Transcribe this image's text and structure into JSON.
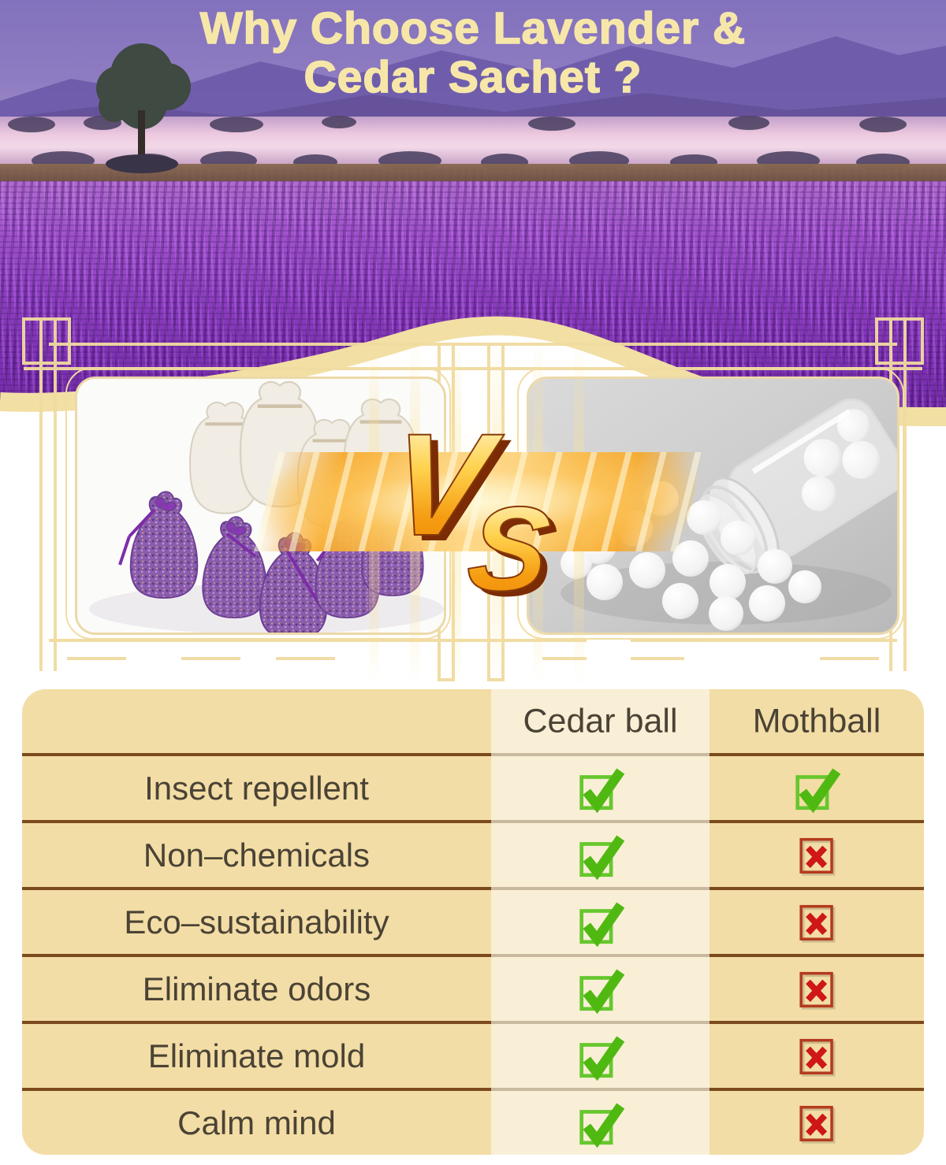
{
  "hero": {
    "title_line1": "Why Choose Lavender &",
    "title_line2": "Cedar Sachet ?",
    "title_color": "#f6e7a9"
  },
  "versus": {
    "v": "V",
    "s": "S",
    "gold": "#f5a51b",
    "shadow_color": "#7b2c05"
  },
  "photos": {
    "left_subject": "lavender-sachet-bags",
    "right_subject": "mothball-jar"
  },
  "frame": {
    "line_color": "#f0dba0",
    "band_color": "#f2dfa4"
  },
  "table": {
    "headers": [
      "Cedar ball",
      "Mothball"
    ],
    "rows": [
      {
        "label": "Insect repellent",
        "cedar": "check",
        "mothball": "check"
      },
      {
        "label": "Non–chemicals",
        "cedar": "check",
        "mothball": "cross"
      },
      {
        "label": "Eco–sustainability",
        "cedar": "check",
        "mothball": "cross"
      },
      {
        "label": "Eliminate odors",
        "cedar": "check",
        "mothball": "cross"
      },
      {
        "label": "Eliminate mold",
        "cedar": "check",
        "mothball": "cross"
      },
      {
        "label": "Calm mind",
        "cedar": "check",
        "mothball": "cross"
      }
    ],
    "colors": {
      "bg": "#f3dda6",
      "highlight_column_bg": "#f9efd6",
      "divider": "#7b4a1d",
      "divider_light": "#c9b99e",
      "text": "#4a4335",
      "check": "#4fb911",
      "check_box": "#66c72e",
      "cross": "#cf1717",
      "cross_box": "#b43a1e"
    }
  }
}
